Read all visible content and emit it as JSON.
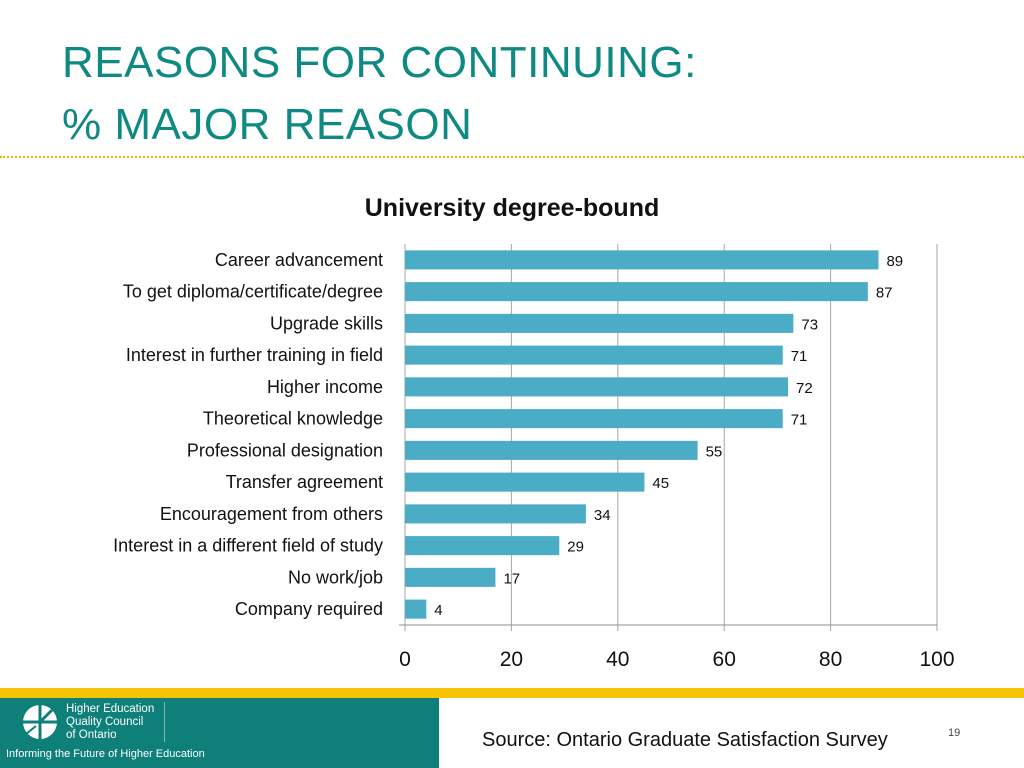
{
  "slide": {
    "title_line1": "REASONS FOR CONTINUING:",
    "title_line2": "% MAJOR REASON",
    "source": "Source: Ontario Graduate Satisfaction Survey",
    "page_number": "19",
    "logo_line1": "Higher Education",
    "logo_line2": "Quality Council",
    "logo_line3": "of Ontario",
    "tagline": "Informing the Future of Higher Education"
  },
  "colors": {
    "title": "#0f8a82",
    "bar": "#4bacc6",
    "footer_teal": "#0f7f79",
    "footer_gold": "#f5c400"
  },
  "chart_data": {
    "type": "bar",
    "orientation": "horizontal",
    "title": "University degree-bound",
    "categories": [
      "Career advancement",
      "To get diploma/certificate/degree",
      "Upgrade skills",
      "Interest in further training in field",
      "Higher income",
      "Theoretical knowledge",
      "Professional designation",
      "Transfer agreement",
      "Encouragement from others",
      "Interest in a different field of study",
      "No work/job",
      "Company required"
    ],
    "values": [
      89,
      87,
      73,
      71,
      72,
      71,
      55,
      45,
      34,
      29,
      17,
      4
    ],
    "xlim": [
      0,
      100
    ],
    "xticks": [
      0,
      20,
      40,
      60,
      80,
      100
    ],
    "grid": "vertical",
    "legend": "none"
  }
}
